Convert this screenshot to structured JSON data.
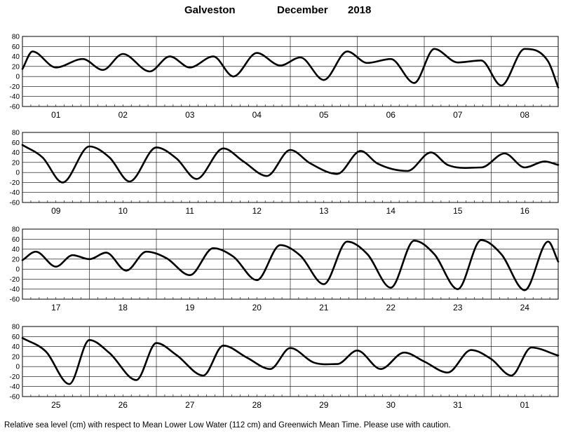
{
  "header": {
    "location": "Galveston",
    "month": "December",
    "year": "2018"
  },
  "footnote": "Relative sea level (cm) with respect to Mean Lower Low Water (112 cm) and Greenwich Mean Time. Please use with caution.",
  "chart_data": {
    "type": "line",
    "title": "Galveston December 2018",
    "ylim": [
      -60,
      80
    ],
    "yticks": [
      80,
      60,
      40,
      20,
      0,
      -20,
      -40,
      -60
    ],
    "grid": true,
    "line_color": "#000000",
    "panels": [
      {
        "days": [
          "01",
          "02",
          "03",
          "04",
          "05",
          "06",
          "07",
          "08"
        ],
        "x": [
          0,
          0.15,
          0.5,
          0.9,
          1.2,
          1.5,
          1.9,
          2.2,
          2.5,
          2.85,
          3.15,
          3.5,
          3.85,
          4.15,
          4.5,
          4.85,
          5.15,
          5.5,
          5.85,
          6.15,
          6.5,
          6.85,
          7.15,
          7.5,
          7.85,
          8
        ],
        "y": [
          15,
          50,
          18,
          35,
          13,
          45,
          10,
          40,
          18,
          40,
          0,
          47,
          22,
          38,
          -7,
          50,
          27,
          35,
          -13,
          55,
          28,
          32,
          -18,
          55,
          30,
          -22
        ]
      },
      {
        "days": [
          "09",
          "10",
          "11",
          "12",
          "13",
          "14",
          "15",
          "16"
        ],
        "x": [
          0,
          0.3,
          0.6,
          1.0,
          1.3,
          1.6,
          2.0,
          2.3,
          2.6,
          3.0,
          3.3,
          3.65,
          4.0,
          4.3,
          4.7,
          5.05,
          5.3,
          5.75,
          6.1,
          6.35,
          6.85,
          7.2,
          7.5,
          7.8,
          8
        ],
        "y": [
          55,
          30,
          -20,
          52,
          30,
          -18,
          50,
          28,
          -13,
          48,
          22,
          -7,
          45,
          18,
          -3,
          43,
          18,
          3,
          40,
          15,
          10,
          38,
          10,
          22,
          15
        ]
      },
      {
        "days": [
          "17",
          "18",
          "19",
          "20",
          "21",
          "22",
          "23",
          "24"
        ],
        "x": [
          0,
          0.2,
          0.5,
          0.75,
          1.0,
          1.25,
          1.55,
          1.85,
          2.15,
          2.5,
          2.85,
          3.15,
          3.5,
          3.85,
          4.15,
          4.5,
          4.85,
          5.15,
          5.5,
          5.85,
          6.15,
          6.5,
          6.85,
          7.15,
          7.5,
          7.85,
          8
        ],
        "y": [
          18,
          35,
          5,
          28,
          20,
          33,
          -3,
          35,
          22,
          -12,
          42,
          25,
          -22,
          48,
          27,
          -30,
          55,
          30,
          -37,
          57,
          30,
          -40,
          58,
          30,
          -42,
          55,
          15
        ]
      },
      {
        "days": [
          "25",
          "26",
          "27",
          "28",
          "29",
          "30",
          "31",
          "01"
        ],
        "x": [
          0,
          0.35,
          0.7,
          1.0,
          1.3,
          1.7,
          2.0,
          2.3,
          2.7,
          3.0,
          3.35,
          3.7,
          4.0,
          4.35,
          4.7,
          5.0,
          5.35,
          5.7,
          6.0,
          6.35,
          6.7,
          7.0,
          7.3,
          7.6,
          8
        ],
        "y": [
          57,
          30,
          -35,
          53,
          27,
          -27,
          47,
          23,
          -18,
          42,
          18,
          -5,
          37,
          8,
          5,
          32,
          -5,
          28,
          10,
          -12,
          33,
          15,
          -18,
          38,
          22
        ]
      }
    ]
  }
}
